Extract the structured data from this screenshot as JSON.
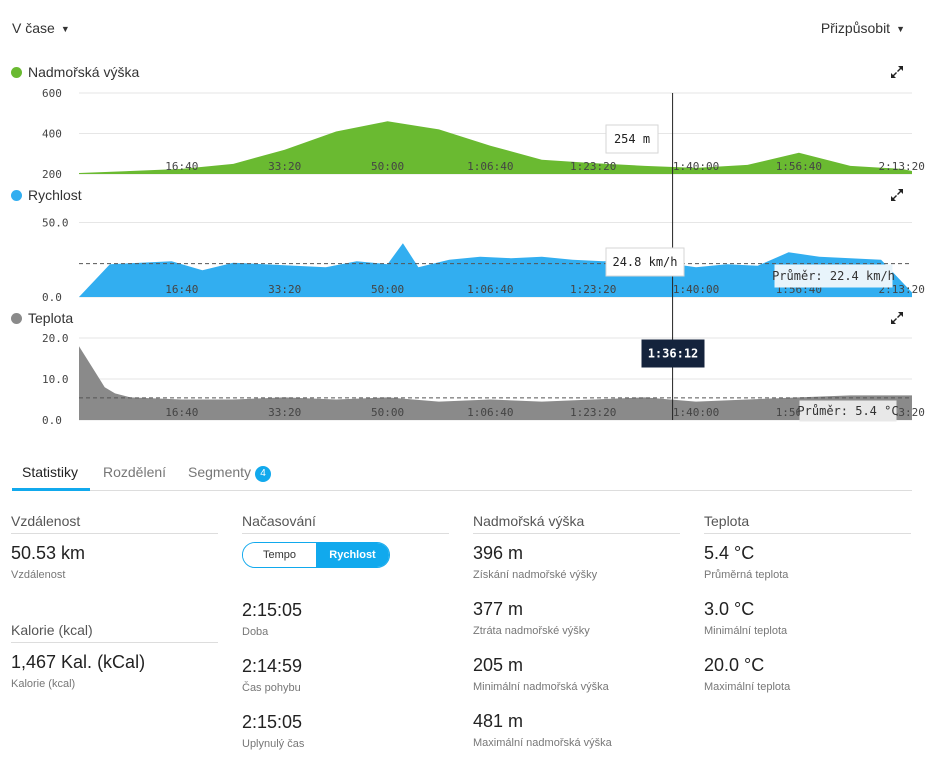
{
  "header": {
    "view_dropdown": "V čase",
    "customize_dropdown": "Přizpůsobit"
  },
  "charts": {
    "elevation": {
      "title": "Nadmořská výška",
      "color": "#6aba31",
      "yticks": [
        "600",
        "400",
        "200"
      ],
      "tooltip": "254 m"
    },
    "speed": {
      "title": "Rychlost",
      "color": "#32aef0",
      "yticks": [
        "50.0",
        "0.0"
      ],
      "tooltip": "24.8 km/h",
      "avg_label": "Průměr: 22.4 km/h"
    },
    "temperature": {
      "title": "Teplota",
      "color": "#8a8a8a",
      "yticks": [
        "20.0",
        "10.0",
        "0.0"
      ],
      "tooltip": "1:36:12",
      "avg_label": "Průměr: 5.4 °C"
    },
    "xticks": [
      "16:40",
      "33:20",
      "50:00",
      "1:06:40",
      "1:23:20",
      "1:40:00",
      "1:56:40",
      "2:13:20"
    ]
  },
  "chart_data": [
    {
      "type": "area",
      "title": "Nadmořská výška",
      "ylabel": "",
      "ylim": [
        200,
        600
      ],
      "x": [
        0,
        500,
        1000,
        1500,
        2000,
        2500,
        3000,
        3500,
        4000,
        4500,
        5000,
        5500,
        6000,
        6500,
        7000,
        7500,
        8000,
        8100
      ],
      "values": [
        205,
        215,
        225,
        250,
        320,
        410,
        460,
        420,
        340,
        270,
        254,
        240,
        230,
        245,
        305,
        240,
        225,
        215
      ]
    },
    {
      "type": "area",
      "title": "Rychlost",
      "ylabel": "",
      "ylim": [
        0,
        55
      ],
      "avg": 22.4,
      "x": [
        0,
        300,
        600,
        900,
        1200,
        1500,
        1800,
        2100,
        2400,
        2700,
        3000,
        3150,
        3300,
        3600,
        3900,
        4200,
        4500,
        4800,
        5100,
        5400,
        5700,
        6000,
        6300,
        6600,
        6900,
        7200,
        7500,
        7800,
        8100
      ],
      "values": [
        0,
        22,
        23,
        24,
        18,
        23,
        22,
        21,
        20,
        24,
        22,
        36,
        20,
        25,
        27,
        26,
        27,
        25,
        24,
        25,
        23,
        20,
        22,
        21,
        30,
        27,
        26,
        25,
        3
      ]
    },
    {
      "type": "area",
      "title": "Teplota",
      "ylabel": "",
      "ylim": [
        0,
        20
      ],
      "avg": 5.4,
      "x": [
        0,
        50,
        150,
        250,
        350,
        500,
        1000,
        1500,
        2000,
        2500,
        3000,
        3500,
        4000,
        4500,
        5000,
        5500,
        6000,
        6500,
        7000,
        7500,
        8100
      ],
      "values": [
        18,
        16,
        12,
        8,
        6.5,
        5.5,
        5,
        5,
        5.5,
        5,
        5.5,
        4.5,
        5,
        4.5,
        5,
        5.5,
        4.5,
        5,
        5.5,
        6,
        6
      ]
    }
  ],
  "tabs": [
    {
      "label": "Statistiky"
    },
    {
      "label": "Rozdělení"
    },
    {
      "label": "Segmenty",
      "badge": "4"
    }
  ],
  "stats": {
    "distance": {
      "header": "Vzdálenost",
      "value": "50.53 km",
      "label": "Vzdálenost"
    },
    "calories": {
      "header": "Kalorie (kcal)",
      "value": "1,467 Kal. (kCal)",
      "label": "Kalorie (kcal)"
    },
    "timing": {
      "header": "Načasování",
      "toggle": [
        "Tempo",
        "Rychlost"
      ],
      "items": [
        {
          "value": "2:15:05",
          "label": "Doba"
        },
        {
          "value": "2:14:59",
          "label": "Čas pohybu"
        },
        {
          "value": "2:15:05",
          "label": "Uplynulý čas"
        }
      ]
    },
    "elevation": {
      "header": "Nadmořská výška",
      "items": [
        {
          "value": "396 m",
          "label": "Získání nadmořské výšky"
        },
        {
          "value": "377 m",
          "label": "Ztráta nadmořské výšky"
        },
        {
          "value": "205 m",
          "label": "Minimální nadmořská výška"
        },
        {
          "value": "481 m",
          "label": "Maximální nadmořská výška"
        }
      ]
    },
    "temperature": {
      "header": "Teplota",
      "items": [
        {
          "value": "5.4 °C",
          "label": "Průměrná teplota"
        },
        {
          "value": "3.0 °C",
          "label": "Minimální teplota"
        },
        {
          "value": "20.0 °C",
          "label": "Maximální teplota"
        }
      ]
    }
  }
}
